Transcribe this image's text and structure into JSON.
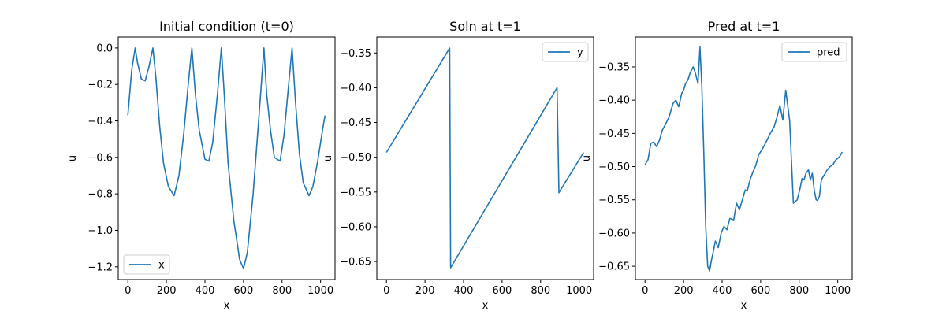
{
  "chart_data": [
    {
      "type": "line",
      "title": "Initial condition (t=0)",
      "xlabel": "x",
      "ylabel": "u",
      "xlim": [
        -50,
        1075
      ],
      "ylim": [
        -1.27,
        0.06
      ],
      "xticks": [
        0,
        200,
        400,
        600,
        800,
        1000
      ],
      "yticks": [
        0.0,
        -0.2,
        -0.4,
        -0.6,
        -0.8,
        -1.0,
        -1.2
      ],
      "ytick_labels": [
        "0.0",
        "−0.2",
        "−0.4",
        "−0.6",
        "−0.8",
        "−1.0",
        "−1.2"
      ],
      "legend_position": "lower-left",
      "grid": false,
      "series": [
        {
          "name": "x",
          "color": "#1f77b4",
          "x": [
            0,
            20,
            38,
            50,
            70,
            90,
            110,
            130,
            145,
            165,
            185,
            210,
            240,
            265,
            290,
            315,
            332,
            350,
            370,
            400,
            420,
            440,
            465,
            485,
            500,
            520,
            550,
            580,
            600,
            620,
            650,
            680,
            706,
            720,
            740,
            760,
            790,
            810,
            830,
            852,
            870,
            890,
            910,
            940,
            960,
            985,
            1010,
            1023
          ],
          "y": [
            -0.37,
            -0.12,
            0.0,
            -0.08,
            -0.17,
            -0.18,
            -0.1,
            0.0,
            -0.16,
            -0.43,
            -0.63,
            -0.76,
            -0.81,
            -0.7,
            -0.47,
            -0.18,
            0.0,
            -0.25,
            -0.45,
            -0.61,
            -0.62,
            -0.52,
            -0.25,
            0.0,
            -0.25,
            -0.63,
            -0.95,
            -1.16,
            -1.21,
            -1.12,
            -0.8,
            -0.38,
            0.0,
            -0.25,
            -0.45,
            -0.6,
            -0.62,
            -0.48,
            -0.25,
            0.0,
            -0.3,
            -0.58,
            -0.74,
            -0.81,
            -0.76,
            -0.62,
            -0.45,
            -0.37
          ]
        }
      ]
    },
    {
      "type": "line",
      "title": "Soln at t=1",
      "xlabel": "x",
      "ylabel": "u",
      "xlim": [
        -50,
        1075
      ],
      "ylim": [
        -0.676,
        -0.327
      ],
      "xticks": [
        0,
        200,
        400,
        600,
        800,
        1000
      ],
      "yticks": [
        -0.35,
        -0.4,
        -0.45,
        -0.5,
        -0.55,
        -0.6,
        -0.65
      ],
      "ytick_labels": [
        "−0.35",
        "−0.40",
        "−0.45",
        "−0.50",
        "−0.55",
        "−0.60",
        "−0.65"
      ],
      "legend_position": "upper-right",
      "grid": false,
      "series": [
        {
          "name": "y",
          "color": "#1f77b4",
          "x": [
            0,
            328,
            333,
            885,
            895,
            1023
          ],
          "y": [
            -0.493,
            -0.343,
            -0.659,
            -0.4,
            -0.551,
            -0.493
          ]
        }
      ]
    },
    {
      "type": "line",
      "title": "Pred at t=1",
      "xlabel": "x",
      "ylabel": "u",
      "xlim": [
        -50,
        1075
      ],
      "ylim": [
        -0.67,
        -0.305
      ],
      "xticks": [
        0,
        200,
        400,
        600,
        800,
        1000
      ],
      "yticks": [
        -0.35,
        -0.4,
        -0.45,
        -0.5,
        -0.55,
        -0.6,
        -0.65
      ],
      "ytick_labels": [
        "−0.35",
        "−0.40",
        "−0.45",
        "−0.50",
        "−0.55",
        "−0.60",
        "−0.65"
      ],
      "legend_position": "upper-right",
      "grid": false,
      "series": [
        {
          "name": "pred",
          "color": "#1f77b4",
          "x": [
            0,
            15,
            30,
            45,
            60,
            75,
            90,
            105,
            125,
            145,
            160,
            175,
            190,
            200,
            210,
            222,
            235,
            250,
            260,
            275,
            285,
            295,
            305,
            315,
            325,
            335,
            345,
            355,
            365,
            380,
            395,
            410,
            425,
            440,
            460,
            475,
            490,
            505,
            520,
            530,
            545,
            560,
            575,
            590,
            610,
            630,
            650,
            670,
            685,
            700,
            715,
            730,
            750,
            770,
            790,
            805,
            815,
            825,
            835,
            848,
            858,
            868,
            878,
            888,
            895,
            905,
            915,
            925,
            935,
            945,
            960,
            975,
            990,
            1010,
            1023
          ],
          "y": [
            -0.497,
            -0.49,
            -0.465,
            -0.463,
            -0.47,
            -0.46,
            -0.445,
            -0.437,
            -0.425,
            -0.405,
            -0.4,
            -0.41,
            -0.39,
            -0.385,
            -0.375,
            -0.37,
            -0.358,
            -0.35,
            -0.358,
            -0.375,
            -0.32,
            -0.38,
            -0.48,
            -0.59,
            -0.65,
            -0.657,
            -0.64,
            -0.627,
            -0.612,
            -0.622,
            -0.6,
            -0.59,
            -0.595,
            -0.578,
            -0.58,
            -0.555,
            -0.565,
            -0.55,
            -0.535,
            -0.537,
            -0.52,
            -0.508,
            -0.498,
            -0.482,
            -0.473,
            -0.462,
            -0.45,
            -0.44,
            -0.425,
            -0.408,
            -0.43,
            -0.385,
            -0.43,
            -0.555,
            -0.55,
            -0.532,
            -0.518,
            -0.52,
            -0.51,
            -0.505,
            -0.52,
            -0.51,
            -0.535,
            -0.55,
            -0.551,
            -0.545,
            -0.52,
            -0.515,
            -0.51,
            -0.505,
            -0.5,
            -0.497,
            -0.49,
            -0.485,
            -0.478
          ]
        }
      ]
    }
  ]
}
